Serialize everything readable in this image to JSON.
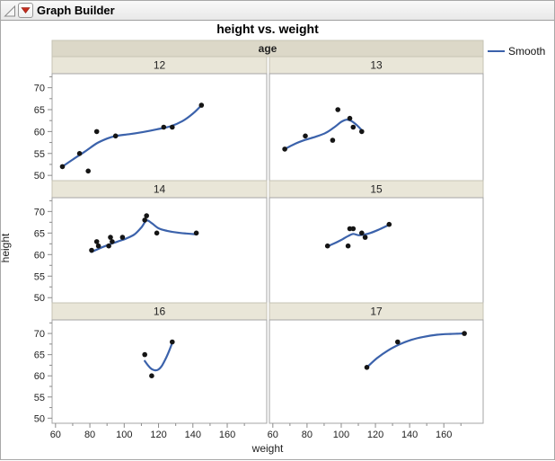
{
  "window": {
    "title": "Graph Builder"
  },
  "header": {
    "disclosure_icon": "open-disclosure-triangle",
    "menu_icon": "red-triangle-menu"
  },
  "colors": {
    "smooth_line": "#3b62ab",
    "point": "#151515",
    "strip_var_fill": "#dcd8c8",
    "strip_level_fill": "#e9e6d8",
    "strip_border": "#c6c3b4",
    "panel_border": "#a6a6a6",
    "panel_fill": "#ffffff",
    "tick": "#8a8a8a",
    "tick_text": "#222222",
    "red_triangle": "#c42b1c"
  },
  "chart_data": {
    "type": "scatter",
    "title": "height vs. weight",
    "xlabel": "weight",
    "ylabel": "height",
    "grid": false,
    "facet": {
      "var": "age",
      "levels": [
        "12",
        "13",
        "14",
        "15",
        "16",
        "17"
      ],
      "layout": "2 columns x 3 rows"
    },
    "legend": {
      "position": "right",
      "entries": [
        {
          "label": "Smooth",
          "color": "#3b62ab",
          "type": "line"
        }
      ]
    },
    "x_ticks": [
      60,
      80,
      100,
      120,
      140,
      160
    ],
    "x_minor_ticks": [
      70,
      90,
      110,
      130,
      150,
      170
    ],
    "y_ticks": [
      70,
      65,
      60,
      55,
      50
    ],
    "y_minor_ticks": [
      52.5,
      57.5,
      62.5,
      67.5,
      72.5
    ],
    "xlim": [
      58,
      183
    ],
    "ylim": [
      48.8,
      73.2
    ],
    "panels": [
      {
        "age": "12",
        "points": [
          [
            64,
            52
          ],
          [
            74,
            55
          ],
          [
            79,
            51
          ],
          [
            84,
            60
          ],
          [
            95,
            59
          ],
          [
            123,
            61
          ],
          [
            128,
            61
          ],
          [
            145,
            66
          ]
        ],
        "smooth": [
          [
            64,
            52
          ],
          [
            70,
            53.6
          ],
          [
            77,
            55.4
          ],
          [
            84,
            57.3
          ],
          [
            90,
            58.4
          ],
          [
            95,
            59
          ],
          [
            103,
            59.4
          ],
          [
            111,
            59.9
          ],
          [
            119,
            60.5
          ],
          [
            127,
            61.2
          ],
          [
            134,
            62.4
          ],
          [
            140,
            64.1
          ],
          [
            145,
            66
          ]
        ]
      },
      {
        "age": "13",
        "points": [
          [
            67,
            56
          ],
          [
            79,
            59
          ],
          [
            95,
            58
          ],
          [
            98,
            65
          ],
          [
            105,
            63
          ],
          [
            107,
            61
          ],
          [
            112,
            60
          ]
        ],
        "smooth": [
          [
            67,
            56
          ],
          [
            73,
            57.2
          ],
          [
            79,
            58.1
          ],
          [
            85,
            58.8
          ],
          [
            91,
            59.7
          ],
          [
            96,
            61
          ],
          [
            100,
            62.2
          ],
          [
            103,
            62.7
          ],
          [
            106,
            62.4
          ],
          [
            109,
            61.5
          ],
          [
            112,
            60.3
          ]
        ]
      },
      {
        "age": "14",
        "points": [
          [
            81,
            61
          ],
          [
            84,
            63
          ],
          [
            85,
            62
          ],
          [
            91,
            62
          ],
          [
            92,
            64
          ],
          [
            93,
            63
          ],
          [
            99,
            64
          ],
          [
            112,
            68
          ],
          [
            113,
            69
          ],
          [
            119,
            65
          ],
          [
            142,
            65
          ]
        ],
        "smooth": [
          [
            81,
            60.6
          ],
          [
            86,
            61.5
          ],
          [
            91,
            62.3
          ],
          [
            96,
            63
          ],
          [
            101,
            63.7
          ],
          [
            106,
            64.7
          ],
          [
            110,
            66.3
          ],
          [
            113,
            67.9
          ],
          [
            116,
            67.3
          ],
          [
            120,
            66.1
          ],
          [
            125,
            65.5
          ],
          [
            131,
            65.1
          ],
          [
            136,
            64.9
          ],
          [
            142,
            64.7
          ]
        ]
      },
      {
        "age": "15",
        "points": [
          [
            92,
            62
          ],
          [
            104,
            62
          ],
          [
            105,
            66
          ],
          [
            107,
            66
          ],
          [
            112,
            65
          ],
          [
            114,
            64
          ],
          [
            128,
            67
          ]
        ],
        "smooth": [
          [
            92,
            61.9
          ],
          [
            96,
            62.6
          ],
          [
            100,
            63.4
          ],
          [
            104,
            64.3
          ],
          [
            107,
            64.8
          ],
          [
            110,
            64.5
          ],
          [
            113,
            64.6
          ],
          [
            117,
            65
          ],
          [
            122,
            65.8
          ],
          [
            128,
            66.9
          ]
        ]
      },
      {
        "age": "16",
        "points": [
          [
            112,
            65
          ],
          [
            116,
            60
          ],
          [
            128,
            68
          ]
        ],
        "smooth": [
          [
            112,
            63.5
          ],
          [
            114,
            62.4
          ],
          [
            116,
            61.6
          ],
          [
            118,
            61.3
          ],
          [
            120,
            61.5
          ],
          [
            122,
            62.4
          ],
          [
            124,
            63.9
          ],
          [
            126,
            65.7
          ],
          [
            128,
            67.8
          ]
        ]
      },
      {
        "age": "17",
        "points": [
          [
            115,
            62
          ],
          [
            133,
            68
          ],
          [
            172,
            70
          ]
        ],
        "smooth": [
          [
            115,
            62
          ],
          [
            121,
            64.2
          ],
          [
            127,
            65.9
          ],
          [
            134,
            67.4
          ],
          [
            141,
            68.5
          ],
          [
            148,
            69.2
          ],
          [
            156,
            69.7
          ],
          [
            164,
            69.9
          ],
          [
            172,
            70
          ]
        ]
      }
    ]
  }
}
